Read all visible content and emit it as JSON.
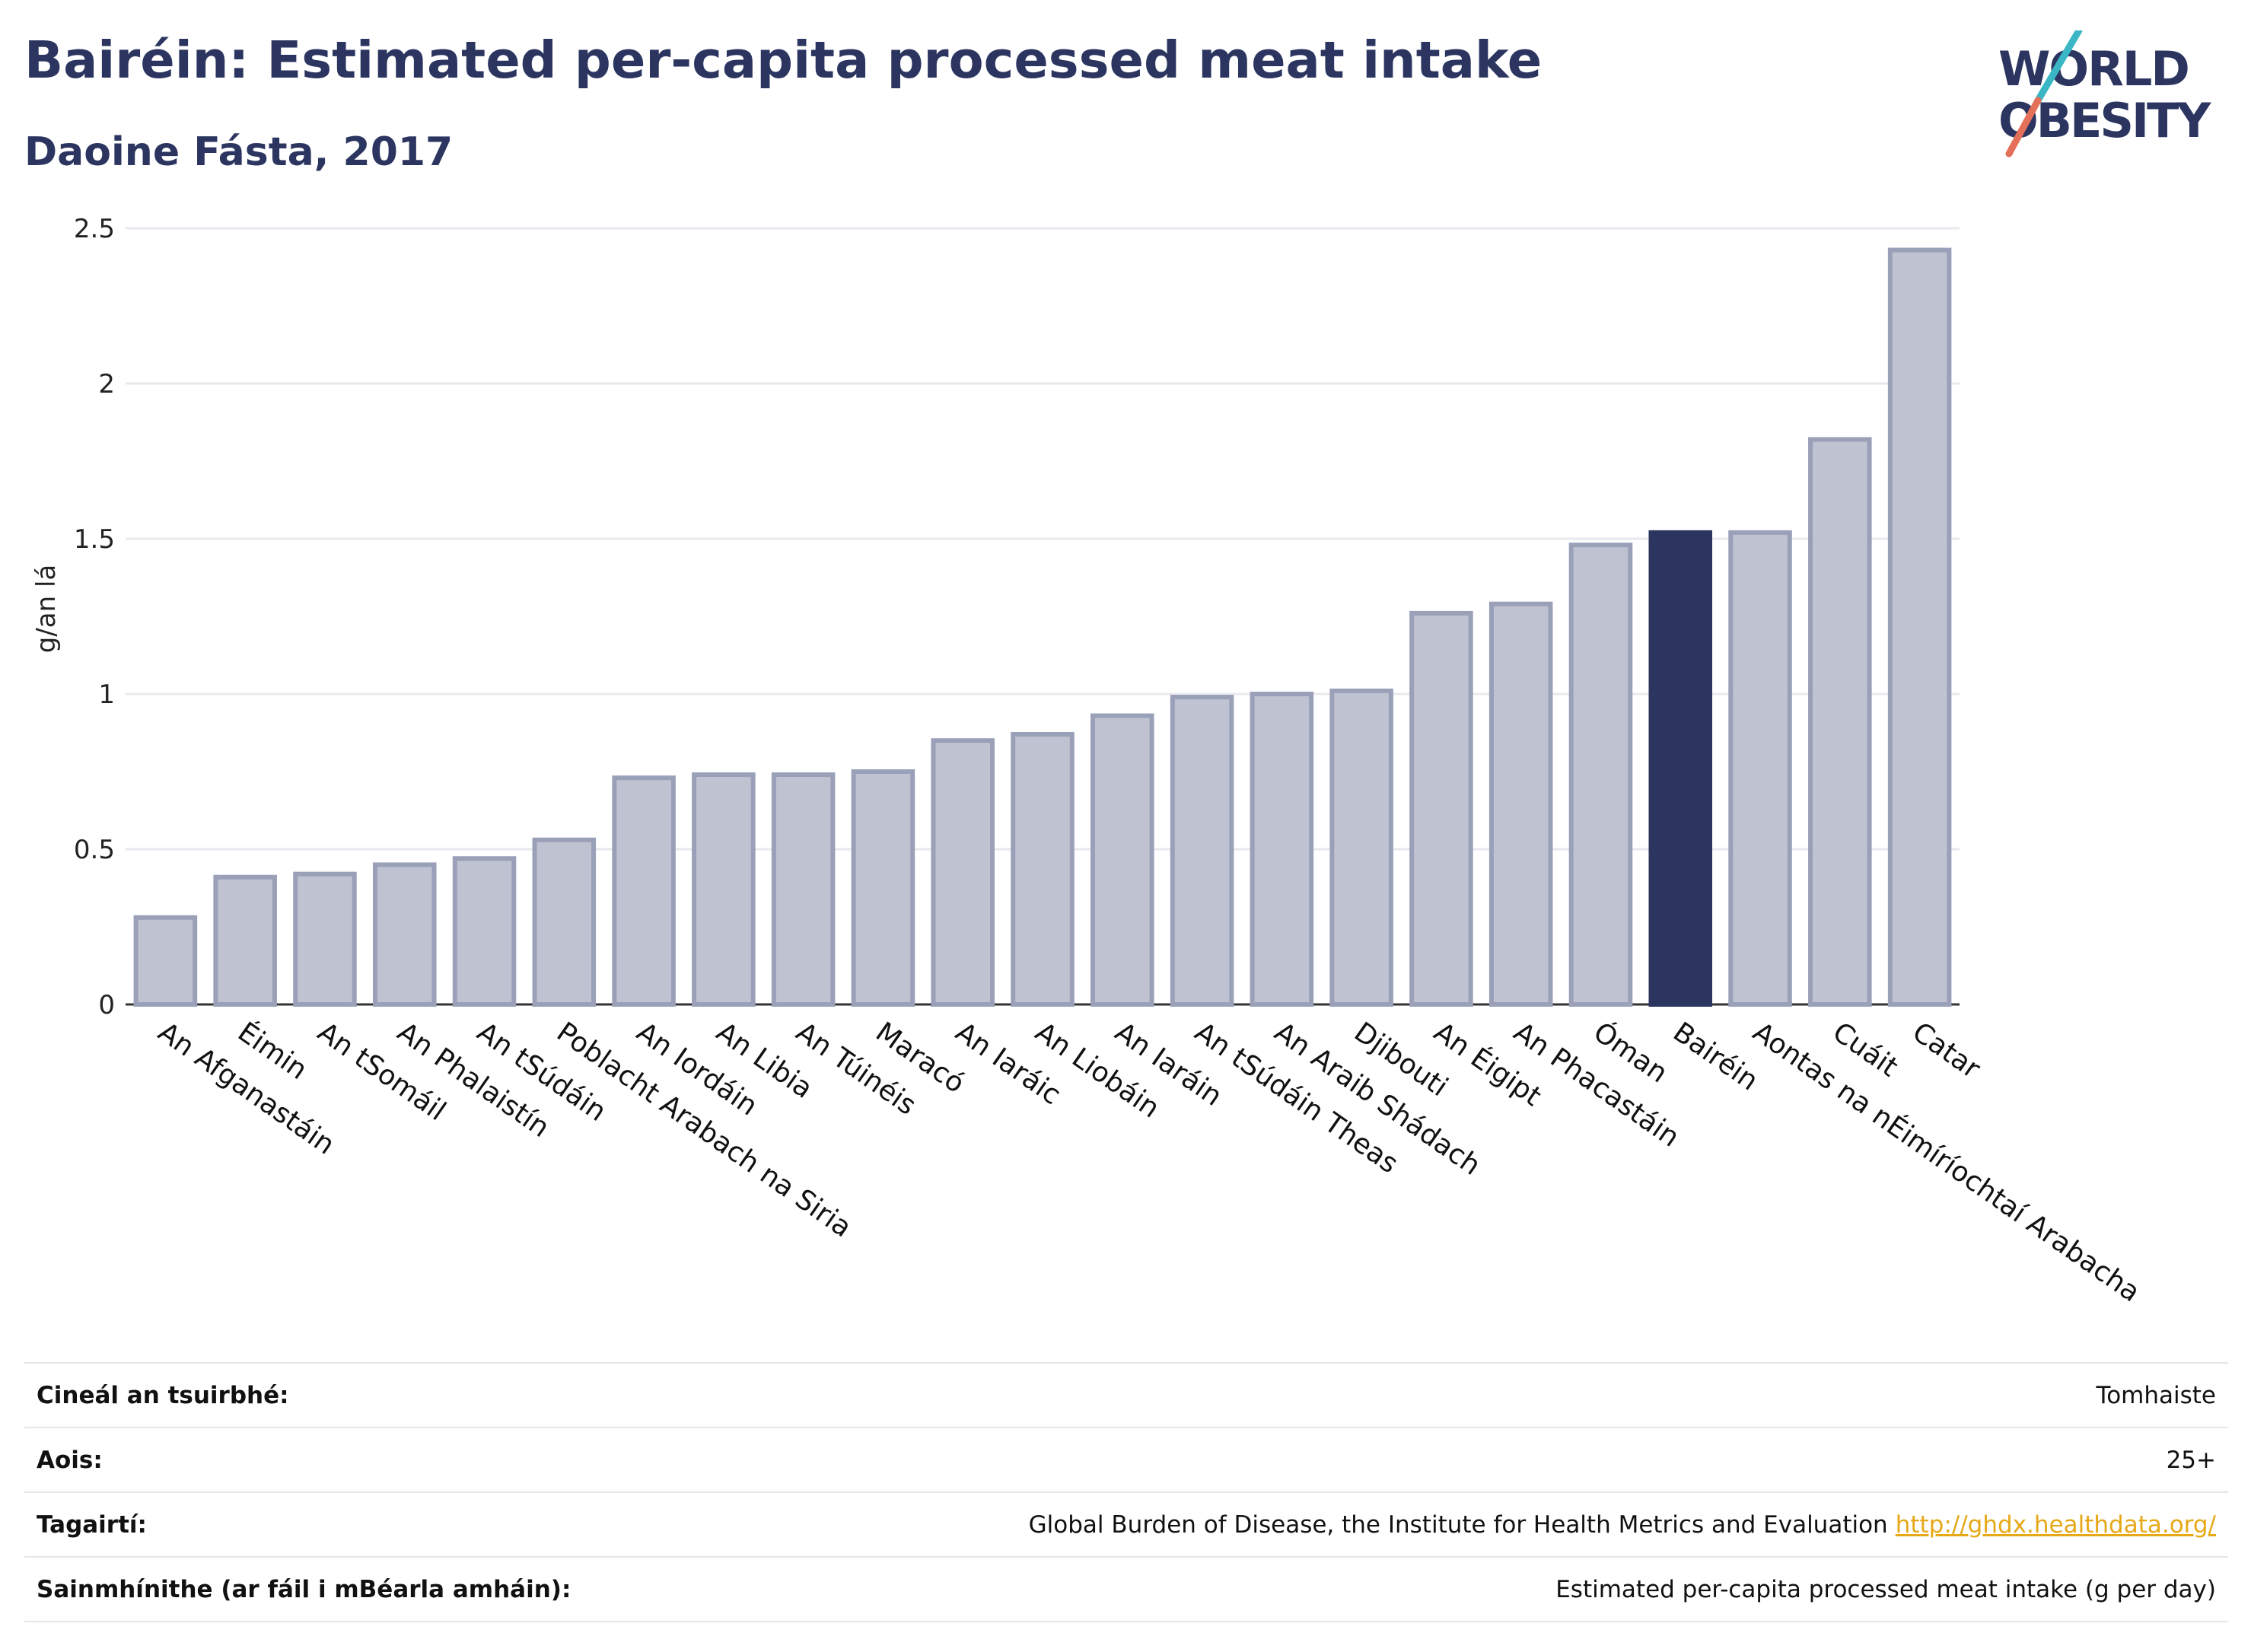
{
  "header": {
    "title": "Bairéin: Estimated per-capita processed meat intake",
    "subtitle": "Daoine Fásta, 2017"
  },
  "logo": {
    "line1": "WORLD",
    "line2": "OBESITY",
    "colors": {
      "text": "#2b3560",
      "slash_top": "#3bb6c4",
      "slash_bottom": "#e4705a"
    }
  },
  "chart_data": {
    "type": "bar",
    "ylabel": "g/an lá",
    "ylim": [
      0,
      2.5
    ],
    "yticks": [
      0,
      0.5,
      1,
      1.5,
      2,
      2.5
    ],
    "ytick_labels": [
      "0",
      "0.5",
      "1",
      "1.5",
      "2",
      "2.5"
    ],
    "grid": true,
    "highlight": "Bairéin",
    "colors": {
      "bar": "#bfc3d1",
      "bar_border": "#9aa0b8",
      "highlight": "#2b3560",
      "grid": "#e8e8ee"
    },
    "categories": [
      "An Afganastáin",
      "Éimin",
      "An tSomáil",
      "An Phalaistín",
      "An tSúdáin",
      "Poblacht Arabach na Siria",
      "An Iordáin",
      "An Libia",
      "An Túinéis",
      "Maracó",
      "An Iaráic",
      "An Liobáin",
      "An Iaráin",
      "An tSúdáin Theas",
      "An Araib Shádach",
      "Djibouti",
      "An Éigipt",
      "An Phacastáin",
      "Óman",
      "Bairéin",
      "Aontas na nÉimíríochtaí Arabacha",
      "Cuáit",
      "Catar"
    ],
    "values": [
      0.28,
      0.41,
      0.42,
      0.45,
      0.47,
      0.53,
      0.73,
      0.74,
      0.74,
      0.75,
      0.85,
      0.87,
      0.93,
      0.99,
      1.0,
      1.01,
      1.26,
      1.29,
      1.48,
      1.52,
      1.52,
      1.82,
      2.43
    ]
  },
  "info": {
    "rows": [
      {
        "label": "Cineál an tsuirbhé:",
        "value": "Tomhaiste"
      },
      {
        "label": "Aois:",
        "value": "25+"
      },
      {
        "label": "Tagairtí:",
        "value": "Global Burden of Disease, the Institute for Health Metrics and Evaluation",
        "link": "http://ghdx.healthdata.org/"
      },
      {
        "label": "Sainmhínithe (ar fáil i mBéarla amháin):",
        "value": "Estimated per-capita processed meat intake (g per day)"
      }
    ]
  }
}
